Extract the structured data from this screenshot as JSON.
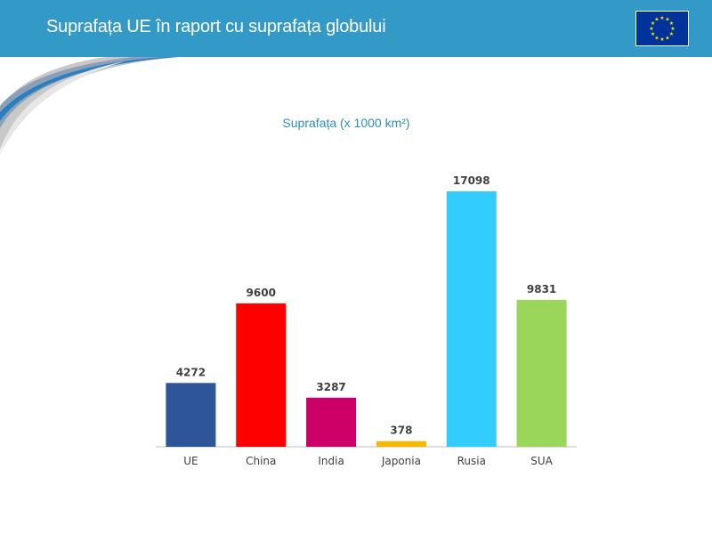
{
  "header": {
    "title": "Suprafața UE în raport cu suprafața globului",
    "flag_icon": "eu-flag-icon"
  },
  "colors": {
    "header_bg": "#3399c6",
    "flag_bg": "#003399",
    "flag_star": "#ffdd00",
    "chart_title": "#2b8fc0"
  },
  "chart_data": {
    "type": "bar",
    "title": "Suprafața (x 1000 km²)",
    "xlabel": "",
    "ylabel": "",
    "ylim": [
      0,
      17098
    ],
    "grid": false,
    "categories": [
      "UE",
      "China",
      "India",
      "Japonia",
      "Rusia",
      "SUA"
    ],
    "values": [
      4272,
      9600,
      3287,
      378,
      17098,
      9831
    ],
    "bar_colors": [
      "#2e5597",
      "#ff0000",
      "#cc0066",
      "#f5b800",
      "#33ccff",
      "#99d65a"
    ]
  }
}
